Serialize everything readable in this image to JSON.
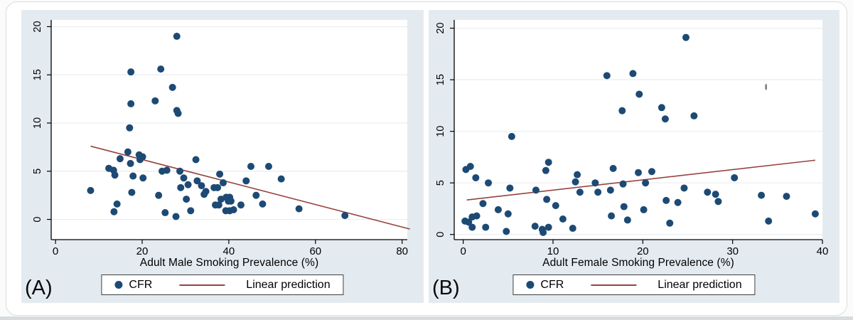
{
  "colors": {
    "dot": "#1d4a74",
    "line": "#96433f",
    "panel_bg": "#e4ebf0",
    "plot_bg": "#ffffff",
    "grid": "#e9eef0",
    "axis": "#000000",
    "legend_border": "#3f3f3f",
    "card_border": "#dcdddd",
    "bottom_strip": "#d8dcde"
  },
  "chart_data": [
    {
      "type": "scatter",
      "panel_label": "(A)",
      "title": "",
      "xlabel": "Adult Male Smoking Prevalence (%)",
      "ylabel": "",
      "x_range": [
        -1,
        81.2
      ],
      "y_range": [
        -2.1,
        20.7
      ],
      "xticks": [
        0,
        20,
        40,
        60,
        80
      ],
      "yticks": [
        0,
        5,
        10,
        15,
        20
      ],
      "grid": "horizontal",
      "legend_position": "bottom-center",
      "series": [
        {
          "name": "CFR",
          "type": "scatter",
          "points": [
            [
              8.1,
              3.0
            ],
            [
              12.3,
              5.3
            ],
            [
              13.4,
              5.1
            ],
            [
              13.7,
              4.6
            ],
            [
              13.5,
              0.8
            ],
            [
              14.2,
              1.6
            ],
            [
              14.9,
              6.3
            ],
            [
              16.7,
              7.0
            ],
            [
              17.3,
              5.8
            ],
            [
              17.4,
              15.3
            ],
            [
              17.4,
              12.0
            ],
            [
              17.1,
              9.5
            ],
            [
              17.9,
              4.5
            ],
            [
              17.6,
              2.8
            ],
            [
              19.3,
              6.7
            ],
            [
              20.1,
              6.5
            ],
            [
              19.5,
              6.2
            ],
            [
              20.2,
              4.3
            ],
            [
              23.0,
              12.3
            ],
            [
              23.8,
              2.5
            ],
            [
              24.3,
              15.6
            ],
            [
              24.6,
              5.0
            ],
            [
              25.7,
              5.1
            ],
            [
              25.3,
              0.7
            ],
            [
              27.0,
              13.7
            ],
            [
              28.0,
              19.0
            ],
            [
              28.0,
              11.3
            ],
            [
              28.3,
              11.0
            ],
            [
              28.7,
              5.0
            ],
            [
              27.8,
              0.3
            ],
            [
              29.6,
              4.3
            ],
            [
              28.9,
              3.3
            ],
            [
              30.6,
              3.6
            ],
            [
              30.2,
              2.1
            ],
            [
              31.2,
              0.9
            ],
            [
              32.4,
              6.2
            ],
            [
              32.7,
              4.0
            ],
            [
              33.7,
              3.5
            ],
            [
              34.7,
              2.9
            ],
            [
              34.3,
              2.6
            ],
            [
              36.6,
              3.3
            ],
            [
              37.4,
              3.3
            ],
            [
              36.9,
              1.5
            ],
            [
              37.7,
              1.5
            ],
            [
              37.9,
              4.7
            ],
            [
              38.7,
              3.8
            ],
            [
              38.2,
              2.1
            ],
            [
              39.4,
              2.3
            ],
            [
              40.2,
              2.3
            ],
            [
              39.9,
              1.9
            ],
            [
              40.5,
              1.9
            ],
            [
              39.3,
              0.9
            ],
            [
              40.2,
              0.9
            ],
            [
              41.1,
              1.0
            ],
            [
              42.8,
              1.5
            ],
            [
              44.0,
              4.0
            ],
            [
              45.1,
              5.5
            ],
            [
              49.2,
              5.5
            ],
            [
              46.3,
              2.5
            ],
            [
              47.8,
              1.6
            ],
            [
              52.1,
              4.2
            ],
            [
              56.2,
              1.1
            ],
            [
              66.8,
              0.4
            ]
          ]
        },
        {
          "name": "Linear prediction",
          "type": "line",
          "from": [
            8.1,
            7.6
          ],
          "to": [
            81.8,
            -1.0
          ]
        }
      ]
    },
    {
      "type": "scatter",
      "panel_label": "(B)",
      "title": "",
      "xlabel": "Adult Female Smoking Prevalence (%)",
      "ylabel": "",
      "x_range": [
        -1,
        40
      ],
      "y_range": [
        -0.5,
        20.8
      ],
      "xticks": [
        0,
        10,
        20,
        30,
        40
      ],
      "yticks": [
        0,
        5,
        10,
        15,
        20
      ],
      "grid": "horizontal",
      "legend_position": "bottom-center",
      "stray_mark": {
        "x": 33.7,
        "y": 14.3
      },
      "series": [
        {
          "name": "CFR",
          "type": "scatter",
          "points": [
            [
              0.3,
              6.3
            ],
            [
              0.8,
              6.6
            ],
            [
              1.4,
              5.5
            ],
            [
              2.8,
              5.0
            ],
            [
              5.2,
              4.5
            ],
            [
              8.1,
              4.3
            ],
            [
              2.2,
              3.0
            ],
            [
              3.9,
              2.4
            ],
            [
              5.0,
              2.0
            ],
            [
              0.2,
              1.3
            ],
            [
              0.6,
              1.2
            ],
            [
              1.0,
              1.7
            ],
            [
              1.5,
              1.8
            ],
            [
              1.0,
              0.7
            ],
            [
              2.5,
              0.7
            ],
            [
              4.8,
              0.3
            ],
            [
              5.4,
              9.5
            ],
            [
              8.0,
              0.8
            ],
            [
              8.8,
              0.5
            ],
            [
              8.9,
              0.2
            ],
            [
              9.5,
              0.7
            ],
            [
              12.2,
              0.6
            ],
            [
              9.3,
              3.4
            ],
            [
              10.3,
              2.8
            ],
            [
              11.1,
              1.5
            ],
            [
              9.2,
              6.2
            ],
            [
              9.5,
              7.0
            ],
            [
              12.7,
              5.8
            ],
            [
              12.5,
              5.1
            ],
            [
              13.0,
              4.1
            ],
            [
              14.7,
              5.0
            ],
            [
              15.0,
              4.1
            ],
            [
              16.4,
              4.3
            ],
            [
              16.7,
              6.4
            ],
            [
              16.5,
              1.8
            ],
            [
              17.8,
              4.9
            ],
            [
              17.9,
              2.7
            ],
            [
              18.3,
              1.4
            ],
            [
              19.5,
              6.0
            ],
            [
              20.1,
              2.4
            ],
            [
              20.3,
              5.0
            ],
            [
              21.0,
              6.1
            ],
            [
              22.6,
              3.3
            ],
            [
              23.0,
              1.1
            ],
            [
              23.9,
              3.1
            ],
            [
              24.6,
              4.5
            ],
            [
              27.2,
              4.1
            ],
            [
              28.1,
              3.9
            ],
            [
              28.4,
              3.2
            ],
            [
              30.2,
              5.5
            ],
            [
              33.2,
              3.8
            ],
            [
              34.0,
              1.3
            ],
            [
              36.0,
              3.7
            ],
            [
              39.2,
              2.0
            ],
            [
              16.0,
              15.4
            ],
            [
              18.9,
              15.6
            ],
            [
              19.6,
              13.6
            ],
            [
              17.7,
              12.0
            ],
            [
              22.1,
              12.3
            ],
            [
              22.5,
              11.2
            ],
            [
              24.8,
              19.1
            ],
            [
              25.7,
              11.5
            ]
          ]
        },
        {
          "name": "Linear prediction",
          "type": "line",
          "from": [
            0.4,
            3.35
          ],
          "to": [
            39.2,
            7.2
          ]
        }
      ]
    }
  ]
}
